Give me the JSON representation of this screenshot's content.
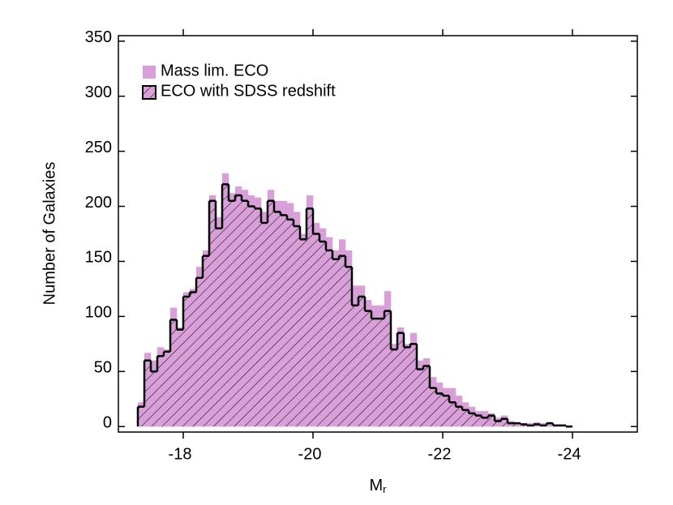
{
  "chart_data": {
    "type": "histogram",
    "y_label": "Number of Galaxies",
    "x_label": "M",
    "x_label_subscript": "r",
    "bins": [
      -17.3,
      -17.4,
      -17.5,
      -17.6,
      -17.7,
      -17.8,
      -17.9,
      -18.0,
      -18.1,
      -18.2,
      -18.3,
      -18.4,
      -18.5,
      -18.6,
      -18.7,
      -18.8,
      -18.9,
      -19.0,
      -19.1,
      -19.2,
      -19.3,
      -19.4,
      -19.5,
      -19.6,
      -19.7,
      -19.8,
      -19.9,
      -20.0,
      -20.1,
      -20.2,
      -20.3,
      -20.4,
      -20.5,
      -20.6,
      -20.7,
      -20.8,
      -20.9,
      -21.0,
      -21.1,
      -21.2,
      -21.3,
      -21.4,
      -21.5,
      -21.6,
      -21.7,
      -21.8,
      -21.9,
      -22.0,
      -22.1,
      -22.2,
      -22.3,
      -22.4,
      -22.5,
      -22.6,
      -22.7,
      -22.8,
      -22.9,
      -23.0,
      -23.1,
      -23.2,
      -23.3,
      -23.4,
      -23.5,
      -23.6,
      -23.7,
      -23.8,
      -23.9,
      -24.0
    ],
    "series": [
      {
        "name": "Mass lim. ECO",
        "color": "#d99fd9",
        "style": "filled",
        "values": [
          22,
          67,
          60,
          72,
          70,
          108,
          90,
          122,
          125,
          145,
          160,
          210,
          190,
          230,
          212,
          218,
          215,
          210,
          208,
          195,
          215,
          205,
          205,
          203,
          195,
          175,
          210,
          185,
          180,
          172,
          160,
          170,
          160,
          128,
          128,
          115,
          110,
          110,
          123,
          75,
          90,
          75,
          85,
          60,
          62,
          45,
          40,
          35,
          35,
          28,
          22,
          18,
          14,
          14,
          12,
          8,
          10,
          5,
          4,
          3,
          3,
          4,
          3,
          4,
          2,
          1,
          1
        ]
      },
      {
        "name": "ECO with SDSS redshift",
        "color": "#000000",
        "style": "hatched",
        "values": [
          18,
          60,
          50,
          64,
          68,
          97,
          88,
          118,
          122,
          135,
          155,
          205,
          180,
          220,
          205,
          210,
          205,
          200,
          198,
          185,
          205,
          195,
          192,
          188,
          182,
          170,
          198,
          175,
          168,
          160,
          152,
          155,
          145,
          110,
          118,
          105,
          98,
          98,
          105,
          70,
          85,
          72,
          75,
          52,
          55,
          35,
          30,
          28,
          22,
          18,
          15,
          12,
          10,
          8,
          10,
          5,
          7,
          3,
          3,
          2,
          1,
          2,
          1,
          3,
          1,
          1,
          0
        ]
      }
    ],
    "xlim": [
      -17,
      -25
    ],
    "xticks": [
      -18,
      -20,
      -22,
      -24
    ],
    "ylim": [
      -5,
      355
    ],
    "yticks": [
      0,
      50,
      100,
      150,
      200,
      250,
      300,
      350
    ],
    "legend": "upper-left"
  }
}
